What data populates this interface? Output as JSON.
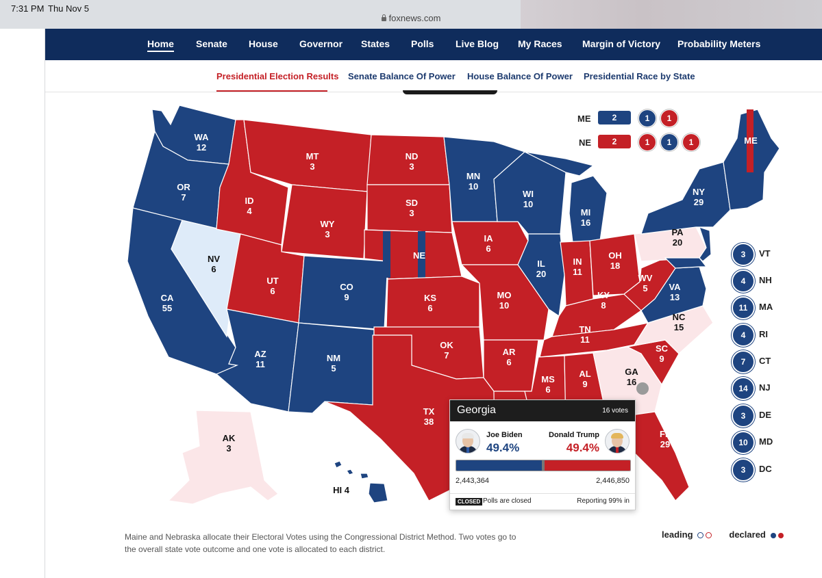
{
  "status_bar": {
    "time": "7:31 PM",
    "date": "Thu Nov 5",
    "url": "foxnews.com"
  },
  "top_nav": [
    "Home",
    "Senate",
    "House",
    "Governor",
    "States",
    "Polls",
    "Live Blog",
    "My Races",
    "Margin of Victory",
    "Probability Meters"
  ],
  "sub_nav": [
    "Presidential Election Results",
    "Senate Balance Of Power",
    "House Balance Of Power",
    "Presidential Race by State"
  ],
  "colors": {
    "dem": "#1e4480",
    "rep": "#c42026",
    "dem_lean": "#deebf9",
    "rep_lean": "#fbe6e8",
    "nav": "#0f2c5c"
  },
  "states": {
    "WA": "12",
    "OR": "7",
    "CA": "55",
    "NV": "6",
    "ID": "4",
    "MT": "3",
    "WY": "3",
    "UT": "6",
    "AZ": "11",
    "CO": "9",
    "NM": "5",
    "ND": "3",
    "SD": "3",
    "KS": "6",
    "OK": "7",
    "TX": "38",
    "MN": "10",
    "IA": "6",
    "MO": "10",
    "AR": "6",
    "WI": "10",
    "IL": "20",
    "MI": "16",
    "IN": "11",
    "OH": "18",
    "KY": "8",
    "TN": "11",
    "MS": "6",
    "AL": "9",
    "GA": "16",
    "FL": "29",
    "SC": "9",
    "NC": "15",
    "VA": "13",
    "WV": "5",
    "PA": "20",
    "NY": "29",
    "AK": "3",
    "HI": "4"
  },
  "ne_label": "NE",
  "me_label": "ME",
  "hi_label": "HI 4",
  "districts": {
    "me": {
      "label": "ME",
      "statewide": "2",
      "cd": [
        "1",
        "1"
      ]
    },
    "ne": {
      "label": "NE",
      "statewide": "2",
      "cd": [
        "1",
        "1",
        "1"
      ]
    }
  },
  "small_states": [
    {
      "votes": "3",
      "abbr": "VT"
    },
    {
      "votes": "4",
      "abbr": "NH"
    },
    {
      "votes": "11",
      "abbr": "MA"
    },
    {
      "votes": "4",
      "abbr": "RI"
    },
    {
      "votes": "7",
      "abbr": "CT"
    },
    {
      "votes": "14",
      "abbr": "NJ"
    },
    {
      "votes": "3",
      "abbr": "DE"
    },
    {
      "votes": "10",
      "abbr": "MD"
    },
    {
      "votes": "3",
      "abbr": "DC"
    }
  ],
  "tooltip": {
    "state": "Georgia",
    "electoral_votes": "16 votes",
    "dem": {
      "name": "Joe Biden",
      "pct": "49.4%",
      "votes": "2,443,364",
      "share": 0.494
    },
    "rep": {
      "name": "Donald Trump",
      "pct": "49.4%",
      "votes": "2,446,850",
      "share": 0.494
    },
    "status": "CLOSED",
    "status_text": "Polls are closed",
    "reporting": "Reporting 99% in"
  },
  "note": "Maine and Nebraska allocate their Electoral Votes using the Congressional District Method. Two votes go to the overall state vote outcome and one vote is allocated to each district.",
  "legend": {
    "leading": "leading",
    "declared": "declared"
  }
}
